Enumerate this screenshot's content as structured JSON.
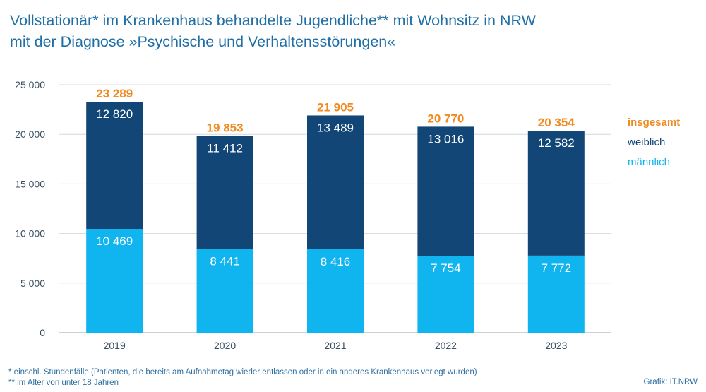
{
  "title": {
    "line1": "Vollstationär* im Krankenhaus behandelte Jugendliche** mit Wohnsitz in NRW",
    "line2": "mit der Diagnose »Psychische und Verhaltensstörungen«"
  },
  "colors": {
    "total": "#ef8a1e",
    "female": "#114677",
    "male": "#10b4ee",
    "title": "#1f6fa6"
  },
  "chart_data": {
    "type": "bar",
    "stacked": true,
    "categories": [
      "2019",
      "2020",
      "2021",
      "2022",
      "2023"
    ],
    "series": [
      {
        "name": "männlich",
        "values": [
          10469,
          8441,
          8416,
          7754,
          7772
        ],
        "labels": [
          "10 469",
          "8 441",
          "8 416",
          "7 754",
          "7 772"
        ]
      },
      {
        "name": "weiblich",
        "values": [
          12820,
          11412,
          13489,
          13016,
          12582
        ],
        "labels": [
          "12 820",
          "11 412",
          "13 489",
          "13 016",
          "12 582"
        ]
      }
    ],
    "totals": {
      "name": "insgesamt",
      "values": [
        23289,
        19853,
        21905,
        20770,
        20354
      ],
      "labels": [
        "23 289",
        "19 853",
        "21 905",
        "20 770",
        "20 354"
      ]
    },
    "ylim": [
      0,
      25000
    ],
    "yticks": [
      0,
      5000,
      10000,
      15000,
      20000,
      25000
    ],
    "ytick_labels": [
      "0",
      "5 000",
      "10 000",
      "15 000",
      "20 000",
      "25 000"
    ],
    "grid": true,
    "legend_position": "right"
  },
  "legend": {
    "total": "insgesamt",
    "female": "weiblich",
    "male": "männlich"
  },
  "footnotes": {
    "note1": " *  einschl. Stundenfälle (Patienten, die bereits am Aufnahmetag wieder entlassen oder in ein anderes Krankenhaus verlegt wurden)",
    "note2": "**  im Alter von unter 18 Jahren"
  },
  "source": "Grafik: IT.NRW"
}
